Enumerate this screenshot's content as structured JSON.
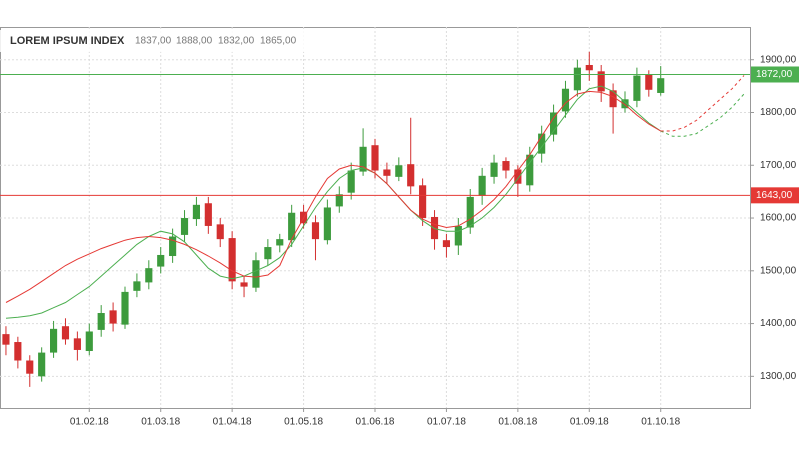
{
  "chart_data": {
    "type": "candlestick",
    "header": {
      "title": "LOREM IPSUM INDEX",
      "ohlc": [
        "1837,00",
        "1888,00",
        "1832,00",
        "1865,00"
      ]
    },
    "categories": [
      null,
      null,
      null,
      null,
      null,
      null,
      null,
      "01.02.18",
      null,
      null,
      null,
      null,
      null,
      "01.03.18",
      null,
      null,
      null,
      null,
      null,
      "01.04.18",
      null,
      null,
      null,
      null,
      null,
      "01.05.18",
      null,
      null,
      null,
      null,
      null,
      "01.06.18",
      null,
      null,
      null,
      null,
      null,
      "01.07.18",
      null,
      null,
      null,
      null,
      null,
      "01.08.18",
      null,
      null,
      null,
      null,
      null,
      "01.09.18",
      null,
      null,
      null,
      null,
      null,
      "01.10.18",
      null,
      null,
      null,
      null,
      null,
      null,
      null
    ],
    "open": [
      1380,
      1365,
      1330,
      1300,
      1345,
      1395,
      1372,
      1348,
      1388,
      1425,
      1398,
      1462,
      1478,
      1508,
      1528,
      1568,
      1598,
      1628,
      1588,
      1562,
      1478,
      1468,
      1522,
      1548,
      1558,
      1612,
      1592,
      1558,
      1622,
      1648,
      1688,
      1738,
      1692,
      1678,
      1702,
      1662,
      1602,
      1558,
      1548,
      1582,
      1642,
      1678,
      1708,
      1692,
      1662,
      1722,
      1758,
      1802,
      1842,
      1890,
      1878,
      1842,
      1808,
      1822,
      1872,
      1837,
      null,
      null,
      null,
      null,
      null,
      null,
      null
    ],
    "high": [
      1395,
      1375,
      1340,
      1355,
      1405,
      1410,
      1385,
      1400,
      1435,
      1440,
      1470,
      1495,
      1520,
      1545,
      1580,
      1615,
      1640,
      1640,
      1600,
      1575,
      1490,
      1535,
      1560,
      1570,
      1625,
      1625,
      1605,
      1635,
      1660,
      1705,
      1770,
      1750,
      1705,
      1715,
      1790,
      1675,
      1615,
      1570,
      1600,
      1655,
      1695,
      1720,
      1715,
      1700,
      1735,
      1775,
      1815,
      1860,
      1900,
      1915,
      1890,
      1855,
      1840,
      1885,
      1880,
      1888,
      null,
      null,
      null,
      null,
      null,
      null,
      null
    ],
    "low": [
      1340,
      1315,
      1280,
      1290,
      1335,
      1360,
      1330,
      1340,
      1375,
      1385,
      1390,
      1450,
      1465,
      1495,
      1515,
      1555,
      1585,
      1570,
      1545,
      1465,
      1450,
      1460,
      1510,
      1535,
      1545,
      1580,
      1520,
      1550,
      1610,
      1635,
      1680,
      1675,
      1665,
      1670,
      1645,
      1585,
      1540,
      1525,
      1530,
      1570,
      1625,
      1665,
      1675,
      1640,
      1650,
      1705,
      1745,
      1790,
      1830,
      1860,
      1820,
      1760,
      1800,
      1810,
      1830,
      1832,
      null,
      null,
      null,
      null,
      null,
      null,
      null
    ],
    "close": [
      1360,
      1330,
      1305,
      1345,
      1390,
      1370,
      1350,
      1385,
      1420,
      1400,
      1460,
      1480,
      1505,
      1530,
      1565,
      1600,
      1625,
      1585,
      1560,
      1480,
      1470,
      1520,
      1545,
      1560,
      1610,
      1590,
      1560,
      1620,
      1645,
      1690,
      1735,
      1690,
      1680,
      1700,
      1660,
      1600,
      1560,
      1545,
      1585,
      1640,
      1680,
      1705,
      1690,
      1665,
      1720,
      1760,
      1800,
      1845,
      1885,
      1880,
      1840,
      1810,
      1825,
      1870,
      1843,
      1865,
      null,
      null,
      null,
      null,
      null,
      null,
      null
    ],
    "up_color": "#3d9b3d",
    "down_color": "#d32f2f",
    "series": [
      {
        "color": "#4caf50",
        "values": [
          1410,
          1412,
          1415,
          1420,
          1430,
          1440,
          1455,
          1470,
          1490,
          1510,
          1530,
          1550,
          1565,
          1575,
          1570,
          1555,
          1530,
          1505,
          1490,
          1485,
          1490,
          1500,
          1510,
          1525,
          1550,
          1585,
          1620,
          1650,
          1675,
          1690,
          1695,
          1685,
          1665,
          1640,
          1615,
          1595,
          1580,
          1575,
          1575,
          1585,
          1600,
          1620,
          1645,
          1675,
          1705,
          1735,
          1765,
          1795,
          1825,
          1845,
          1850,
          1840,
          1820,
          1800,
          1780,
          1765,
          1755,
          1755,
          1760,
          1775,
          1790,
          1810,
          1835
        ]
      },
      {
        "color": "#e53935",
        "values": [
          1440,
          1452,
          1465,
          1480,
          1495,
          1510,
          1522,
          1532,
          1542,
          1550,
          1558,
          1563,
          1565,
          1563,
          1558,
          1550,
          1540,
          1528,
          1515,
          1500,
          1490,
          1488,
          1492,
          1510,
          1560,
          1600,
          1640,
          1675,
          1693,
          1700,
          1697,
          1685,
          1665,
          1640,
          1615,
          1598,
          1588,
          1582,
          1585,
          1598,
          1615,
          1635,
          1660,
          1690,
          1720,
          1755,
          1790,
          1818,
          1835,
          1840,
          1838,
          1830,
          1815,
          1795,
          1778,
          1765,
          1765,
          1772,
          1785,
          1805,
          1825,
          1845,
          1870
        ]
      }
    ],
    "levels": [
      {
        "value": 1872,
        "label": "1872,00",
        "color": "#4caf50"
      },
      {
        "value": 1643,
        "label": "1643,00",
        "color": "#e53935"
      }
    ],
    "ylim": [
      1240,
      1962
    ],
    "yticks": [
      {
        "value": 1300,
        "label": "1300,00"
      },
      {
        "value": 1400,
        "label": "1400,00"
      },
      {
        "value": 1500,
        "label": "1500,00"
      },
      {
        "value": 1600,
        "label": "1600,00"
      },
      {
        "value": 1700,
        "label": "1700,00"
      },
      {
        "value": 1800,
        "label": "1800,00"
      },
      {
        "value": 1900,
        "label": "1900,00"
      }
    ],
    "grid": true
  }
}
